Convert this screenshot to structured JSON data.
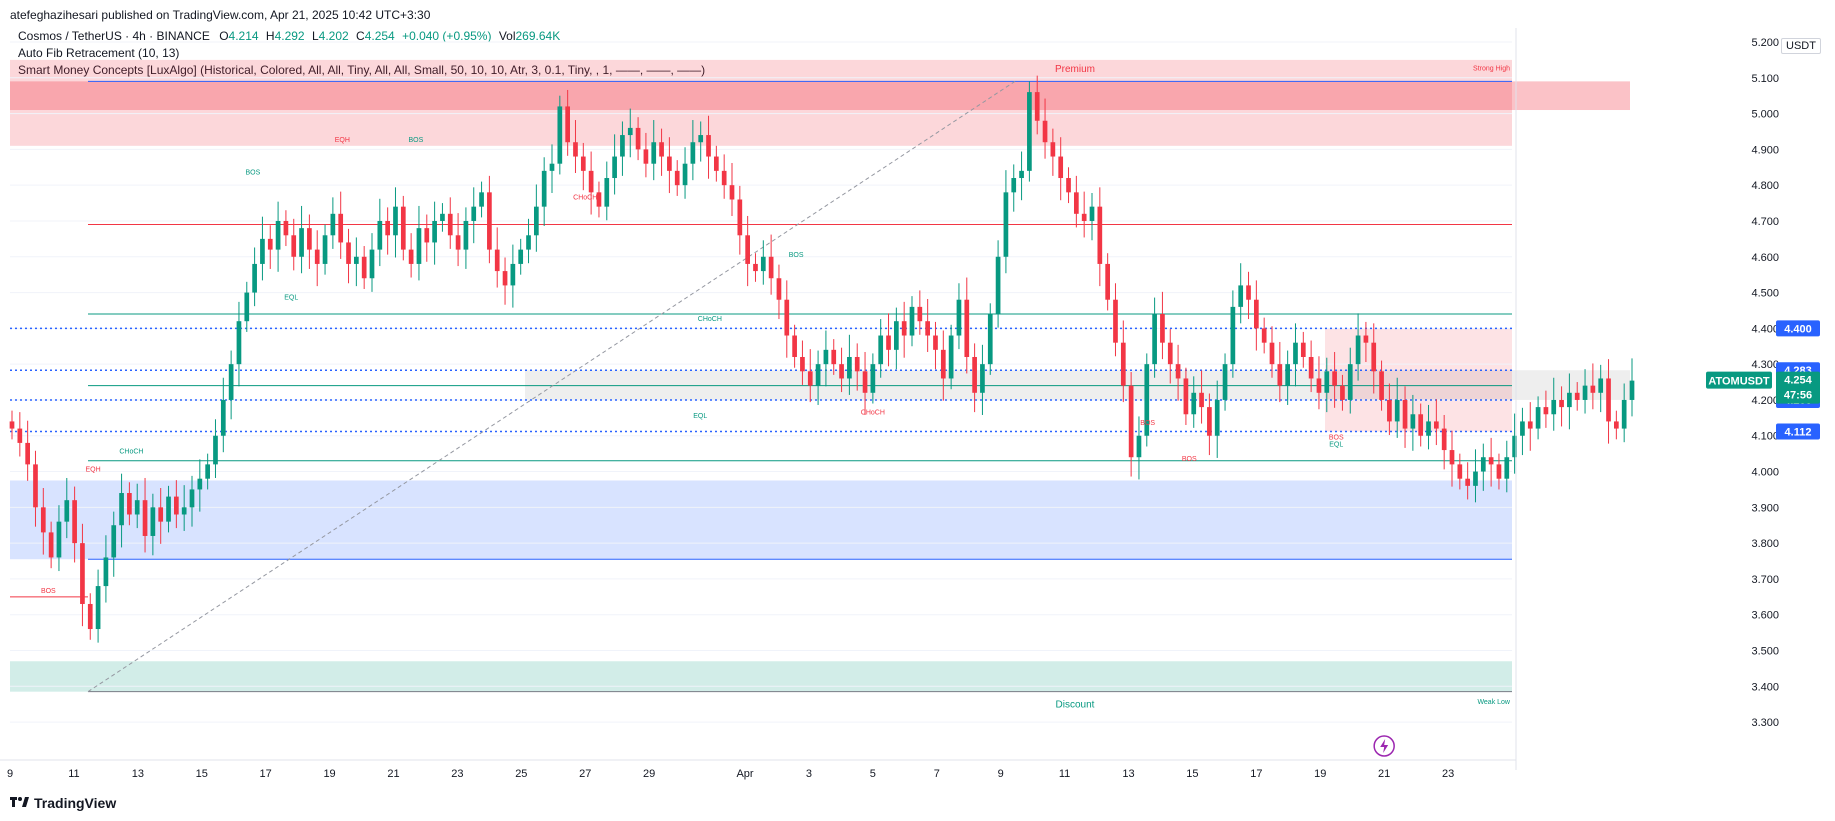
{
  "header": {
    "publisher_line": "atefeghazihesari published on TradingView.com, Apr 21, 2025 10:42 UTC+3:30"
  },
  "legend": {
    "symbol": "Cosmos / TetherUS · 4h · BINANCE",
    "o_label": "O",
    "o_val": "4.214",
    "h_label": "H",
    "h_val": "4.292",
    "l_label": "L",
    "l_val": "4.202",
    "c_label": "C",
    "c_val": "4.254",
    "change": "+0.040 (+0.95%)",
    "vol_label": "Vol",
    "vol_val": "269.64K",
    "indicator1": "Auto Fib Retracement (10, 13)",
    "indicator2": "Smart Money Concepts [LuxAlgo] (Historical, Colored, All, All, Tiny, All, All, Small, 50, 10, 10, Atr, 3, 0.1, Tiny, , 1, ——, ——, ——)"
  },
  "currency": "USDT",
  "footer": {
    "brand": "TradingView"
  },
  "colors": {
    "up": "#089981",
    "down": "#f23645",
    "blue": "#2962ff"
  },
  "chart_data": {
    "type": "candlestick",
    "symbol": "ATOMUSDT",
    "timeframe": "4h",
    "ylim": [
      3.25,
      5.2
    ],
    "y_ticks": [
      "5.200",
      "5.100",
      "5.000",
      "4.900",
      "4.800",
      "4.700",
      "4.600",
      "4.500",
      "4.400",
      "4.300",
      "4.200",
      "4.100",
      "4.000",
      "3.900",
      "3.800",
      "3.700",
      "3.600",
      "3.500",
      "3.400",
      "3.300"
    ],
    "x_ticks": [
      {
        "label": "9",
        "day": 9
      },
      {
        "label": "11",
        "day": 11
      },
      {
        "label": "13",
        "day": 13
      },
      {
        "label": "15",
        "day": 15
      },
      {
        "label": "17",
        "day": 17
      },
      {
        "label": "19",
        "day": 19
      },
      {
        "label": "21",
        "day": 21
      },
      {
        "label": "23",
        "day": 23
      },
      {
        "label": "25",
        "day": 25
      },
      {
        "label": "27",
        "day": 27
      },
      {
        "label": "29",
        "day": 29
      },
      {
        "label": "Apr",
        "day": 32
      },
      {
        "label": "3",
        "day": 34
      },
      {
        "label": "5",
        "day": 36
      },
      {
        "label": "7",
        "day": 38
      },
      {
        "label": "9",
        "day": 40
      },
      {
        "label": "11",
        "day": 42
      },
      {
        "label": "13",
        "day": 44
      },
      {
        "label": "15",
        "day": 46
      },
      {
        "label": "17",
        "day": 48
      },
      {
        "label": "19",
        "day": 50
      },
      {
        "label": "21",
        "day": 52
      },
      {
        "label": "23",
        "day": 54
      }
    ],
    "price_labels": [
      {
        "text": "4.400",
        "value": 4.4
      },
      {
        "text": "4.283",
        "value": 4.283
      },
      {
        "text": "4.200",
        "value": 4.2
      },
      {
        "text": "4.112",
        "value": 4.112
      }
    ],
    "current": {
      "symbol_label": "ATOMUSDT",
      "price": "4.254",
      "countdown": "47:56",
      "value": 4.254
    },
    "zones": [
      {
        "name": "premium",
        "label": "Premium",
        "top": 5.15,
        "bottom": 4.91,
        "color": "#f23645"
      },
      {
        "name": "discount",
        "label": "Discount",
        "top": 3.47,
        "bottom": 3.385,
        "color": "#089981"
      },
      {
        "name": "demand",
        "top": 3.975,
        "bottom": 3.755,
        "color": "#2962ff"
      }
    ],
    "swing_labels": {
      "strong_high": "Strong High",
      "weak_low": "Weak Low"
    },
    "annotations": [
      {
        "text": "BOS",
        "day": 10.2,
        "value": 3.66,
        "color": "#f23645"
      },
      {
        "text": "EQH",
        "day": 11.6,
        "value": 4.0,
        "color": "#f23645"
      },
      {
        "text": "CHoCH",
        "day": 12.8,
        "value": 4.05,
        "color": "#089981"
      },
      {
        "text": "BOS",
        "day": 16.6,
        "value": 4.83,
        "color": "#089981"
      },
      {
        "text": "EQL",
        "day": 17.8,
        "value": 4.48,
        "color": "#089981"
      },
      {
        "text": "EQH",
        "day": 19.4,
        "value": 4.92,
        "color": "#f23645"
      },
      {
        "text": "BOS",
        "day": 21.7,
        "value": 4.92,
        "color": "#089981"
      },
      {
        "text": "CHoCH",
        "day": 27.0,
        "value": 4.76,
        "color": "#f23645"
      },
      {
        "text": "CHoCH",
        "day": 30.9,
        "value": 4.42,
        "color": "#089981"
      },
      {
        "text": "EQL",
        "day": 30.6,
        "value": 4.15,
        "color": "#089981"
      },
      {
        "text": "BOS",
        "day": 33.6,
        "value": 4.6,
        "color": "#089981"
      },
      {
        "text": "CHoCH",
        "day": 36.0,
        "value": 4.16,
        "color": "#f23645"
      },
      {
        "text": "BOS",
        "day": 44.6,
        "value": 4.13,
        "color": "#f23645"
      },
      {
        "text": "BOS",
        "day": 45.9,
        "value": 4.03,
        "color": "#f23645"
      },
      {
        "text": "BOS",
        "day": 50.5,
        "value": 4.09,
        "color": "#f23645"
      },
      {
        "text": "EQL",
        "day": 50.5,
        "value": 4.07,
        "color": "#089981"
      }
    ],
    "closes": [
      4.12,
      4.08,
      4.02,
      3.9,
      3.83,
      3.76,
      3.86,
      3.92,
      3.8,
      3.63,
      3.56,
      3.68,
      3.76,
      3.85,
      3.94,
      3.88,
      3.92,
      3.82,
      3.9,
      3.86,
      3.93,
      3.88,
      3.9,
      3.95,
      3.98,
      4.02,
      4.1,
      4.2,
      4.3,
      4.42,
      4.5,
      4.58,
      4.65,
      4.62,
      4.7,
      4.66,
      4.6,
      4.68,
      4.62,
      4.58,
      4.66,
      4.72,
      4.64,
      4.58,
      4.6,
      4.54,
      4.62,
      4.7,
      4.66,
      4.74,
      4.62,
      4.58,
      4.68,
      4.64,
      4.7,
      4.72,
      4.66,
      4.62,
      4.7,
      4.74,
      4.78,
      4.62,
      4.56,
      4.52,
      4.58,
      4.62,
      4.66,
      4.74,
      4.84,
      4.86,
      5.02,
      4.92,
      4.88,
      4.84,
      4.78,
      4.74,
      4.82,
      4.88,
      4.94,
      4.96,
      4.9,
      4.86,
      4.92,
      4.88,
      4.84,
      4.8,
      4.86,
      4.92,
      4.94,
      4.88,
      4.84,
      4.8,
      4.76,
      4.66,
      4.58,
      4.56,
      4.6,
      4.54,
      4.48,
      4.38,
      4.32,
      4.28,
      4.24,
      4.3,
      4.34,
      4.3,
      4.26,
      4.32,
      4.28,
      4.22,
      4.3,
      4.38,
      4.34,
      4.42,
      4.38,
      4.46,
      4.42,
      4.38,
      4.34,
      4.26,
      4.38,
      4.48,
      4.32,
      4.22,
      4.3,
      4.44,
      4.6,
      4.78,
      4.82,
      4.84,
      5.06,
      4.98,
      4.92,
      4.88,
      4.82,
      4.78,
      4.72,
      4.7,
      4.74,
      4.58,
      4.48,
      4.36,
      4.24,
      4.04,
      4.1,
      4.3,
      4.44,
      4.36,
      4.3,
      4.26,
      4.16,
      4.22,
      4.18,
      4.1,
      4.2,
      4.3,
      4.46,
      4.52,
      4.48,
      4.4,
      4.36,
      4.3,
      4.24,
      4.3,
      4.36,
      4.32,
      4.26,
      4.22,
      4.28,
      4.24,
      4.2,
      4.3,
      4.38,
      4.36,
      4.28,
      4.2,
      4.14,
      4.2,
      4.12,
      4.16,
      4.1,
      4.14,
      4.12,
      4.06,
      4.02,
      3.98,
      3.96,
      4.0,
      4.04,
      4.02,
      3.98,
      4.04,
      4.1,
      4.14,
      4.12,
      4.18,
      4.16,
      4.2,
      4.18,
      4.22,
      4.2,
      4.24,
      4.22,
      4.26,
      4.14,
      4.12,
      4.2,
      4.254
    ]
  }
}
